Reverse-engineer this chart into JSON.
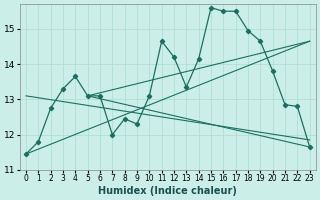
{
  "xlabel": "Humidex (Indice chaleur)",
  "bg_color": "#cceee8",
  "grid_color": "#aaddcc",
  "line_color": "#1a7060",
  "xlim": [
    -0.5,
    23.5
  ],
  "ylim": [
    11.0,
    15.7
  ],
  "yticks": [
    11,
    12,
    13,
    14,
    15
  ],
  "xticks": [
    0,
    1,
    2,
    3,
    4,
    5,
    6,
    7,
    8,
    9,
    10,
    11,
    12,
    13,
    14,
    15,
    16,
    17,
    18,
    19,
    20,
    21,
    22,
    23
  ],
  "main_x": [
    0,
    1,
    2,
    3,
    4,
    5,
    6,
    7,
    8,
    9,
    10,
    11,
    12,
    13,
    14,
    15,
    16,
    17,
    18,
    19,
    20,
    21,
    22,
    23
  ],
  "main_y": [
    11.45,
    11.8,
    12.75,
    13.3,
    13.65,
    13.1,
    13.1,
    12.0,
    12.45,
    12.3,
    13.1,
    14.65,
    14.2,
    13.35,
    14.15,
    15.6,
    15.5,
    15.5,
    14.95,
    14.65,
    13.8,
    12.85,
    12.8,
    11.65
  ],
  "trend_lines": [
    {
      "x": [
        0,
        23
      ],
      "y": [
        11.45,
        14.65
      ]
    },
    {
      "x": [
        0,
        23
      ],
      "y": [
        13.1,
        11.85
      ]
    },
    {
      "x": [
        5,
        23
      ],
      "y": [
        13.1,
        11.65
      ]
    },
    {
      "x": [
        5,
        23
      ],
      "y": [
        13.1,
        14.65
      ]
    }
  ]
}
